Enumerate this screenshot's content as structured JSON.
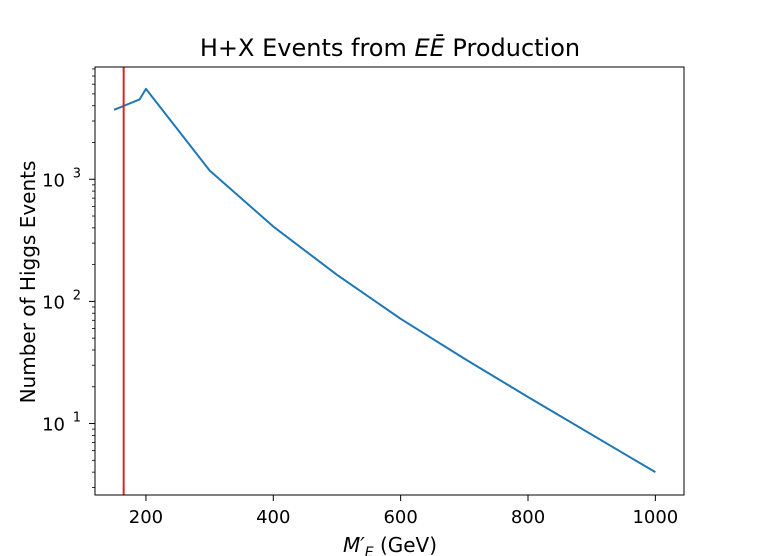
{
  "chart_data": {
    "type": "line",
    "title_plain": "H+X Events from ",
    "title_math": "EĒ",
    "title_tail": " Production",
    "xlabel_math": "M′",
    "xlabel_sub": "E",
    "xlabel_unit": " (GeV)",
    "ylabel": "Number of Higgs Events",
    "xlim": [
      120,
      1045
    ],
    "ylim": [
      2.6,
      8300
    ],
    "yscale": "log",
    "grid": false,
    "x_ticks": [
      200,
      400,
      600,
      800,
      1000
    ],
    "y_ticks": [
      {
        "base": "10",
        "exp": "1",
        "value": 10
      },
      {
        "base": "10",
        "exp": "2",
        "value": 100
      },
      {
        "base": "10",
        "exp": "3",
        "value": 1000
      }
    ],
    "series": [
      {
        "color": "#1f77b4",
        "x": [
          150,
          190,
          200,
          300,
          400,
          500,
          600,
          700,
          800,
          1000
        ],
        "y": [
          3700,
          4500,
          5500,
          1180,
          410,
          165,
          72,
          34,
          16.5,
          4.0
        ]
      }
    ],
    "vline": {
      "x": 165,
      "color": "#d62728"
    }
  }
}
